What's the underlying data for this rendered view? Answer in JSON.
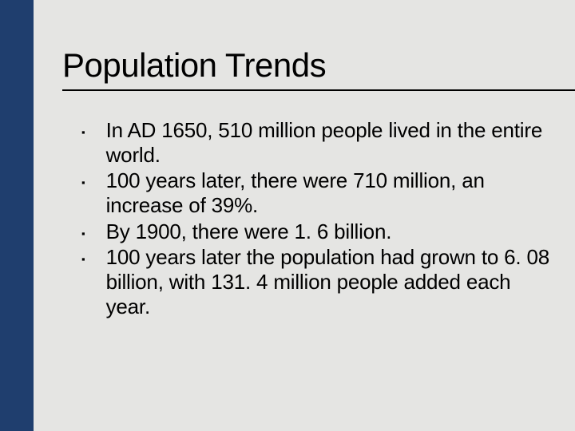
{
  "slide": {
    "background_color": "#e5e5e3",
    "accent_bar_color": "#1f3e6e",
    "accent_bar_width": 42,
    "text_color": "#000000",
    "title": "Population Trends",
    "title_fontsize": 42,
    "title_underline_color": "#000000",
    "body_fontsize": 26,
    "bullet_marker": "▪",
    "bullets": [
      "In AD 1650, 510 million people lived in the entire world.",
      "100 years later, there were 710 million, an increase of 39%.",
      "By 1900, there were 1. 6 billion.",
      "100 years later the population had grown to 6. 08 billion, with 131. 4 million people added each year."
    ]
  }
}
